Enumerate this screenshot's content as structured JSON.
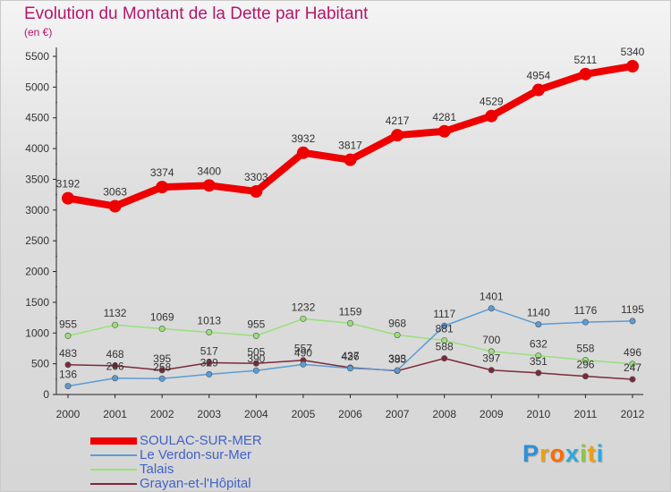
{
  "header": {
    "title": "Evolution du Montant de la Dette par Habitant",
    "subtitle": "(en €)"
  },
  "logo": {
    "letters": [
      "P",
      "r",
      "o",
      "x",
      "i",
      "t",
      "i"
    ],
    "colors": [
      "#2f8fd6",
      "#f0a000",
      "#ff6a00",
      "#2aa9e0",
      "#8dc63f",
      "#f0a000",
      "#2aa9e0"
    ]
  },
  "chart_data": {
    "type": "line",
    "x": [
      "2000",
      "2001",
      "2002",
      "2003",
      "2004",
      "2005",
      "2006",
      "2007",
      "2008",
      "2009",
      "2010",
      "2011",
      "2012"
    ],
    "ylim": [
      0,
      5500
    ],
    "yticks": [
      0,
      500,
      1000,
      1500,
      2000,
      2500,
      3000,
      3500,
      4000,
      4500,
      5000,
      5500
    ],
    "grid": false,
    "legend": "bottom-left",
    "series": [
      {
        "name": "SOULAC-SUR-MER",
        "color": "#ee0000",
        "values": [
          3192,
          3063,
          3374,
          3400,
          3303,
          3932,
          3817,
          4217,
          4281,
          4529,
          4954,
          5211,
          5340
        ]
      },
      {
        "name": "Le Verdon-sur-Mer",
        "color": "#5b9bd5",
        "values": [
          136,
          266,
          258,
          329,
          390,
          490,
          426,
          393,
          1117,
          1401,
          1140,
          1176,
          1195
        ]
      },
      {
        "name": "Talais",
        "color": "#99e07a",
        "values": [
          955,
          1132,
          1069,
          1013,
          955,
          1232,
          1159,
          968,
          881,
          700,
          632,
          558,
          496
        ]
      },
      {
        "name": "Grayan-et-l'Hôpital",
        "color": "#7b2a3a",
        "values": [
          483,
          468,
          395,
          517,
          505,
          557,
          437,
          385,
          588,
          397,
          351,
          296,
          247
        ]
      }
    ]
  }
}
